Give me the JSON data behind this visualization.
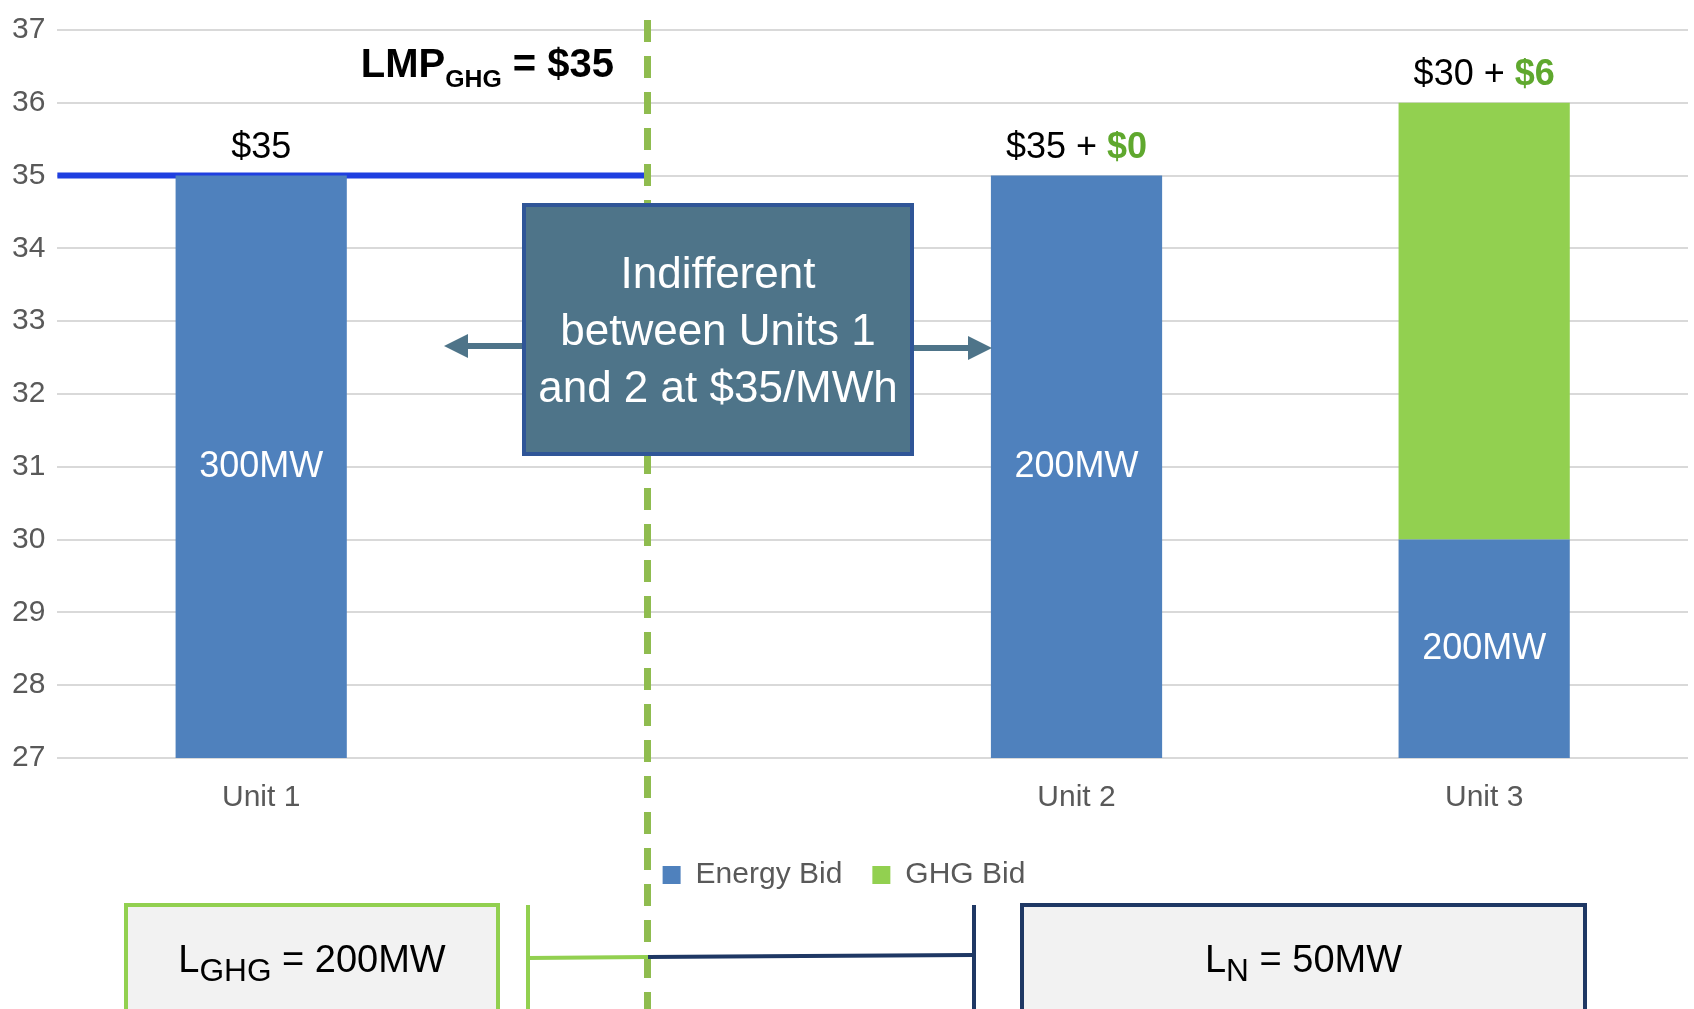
{
  "chart_data": {
    "type": "bar",
    "categories": [
      "Unit 1",
      null,
      "Unit 2",
      "Unit 3"
    ],
    "series": [
      {
        "name": "Energy Bid",
        "color": "#4f81bd",
        "values": [
          35,
          null,
          35,
          30
        ]
      },
      {
        "name": "GHG Bid",
        "color": "#92d050",
        "base": [
          null,
          null,
          null,
          30
        ],
        "values": [
          null,
          null,
          null,
          6
        ]
      }
    ],
    "ylim": [
      27,
      37
    ],
    "yticks": [
      27,
      28,
      29,
      30,
      31,
      32,
      33,
      34,
      35,
      36,
      37
    ],
    "grid": "y",
    "legend": "bottom",
    "ref_lines": [
      {
        "axis": "y",
        "value": 35,
        "label": "LMP$_{GHG}$ = $35",
        "color": "#1f3fe0",
        "line_style": "solid"
      }
    ],
    "annotations": [
      {
        "text": "$35",
        "x": "Unit 1",
        "y": 35
      },
      {
        "text": "$35 + $0",
        "x": "Unit 2",
        "y": 35
      },
      {
        "text": "$30 + $6",
        "x": "Unit 3",
        "y": 36
      },
      "300MW",
      "200MW",
      "200MW",
      "Indifferent between Units 1 and 2 at $35/MWh",
      "L$_{GHG}$ = 200MW",
      "L$_{N}$ = 50MW"
    ]
  }
}
